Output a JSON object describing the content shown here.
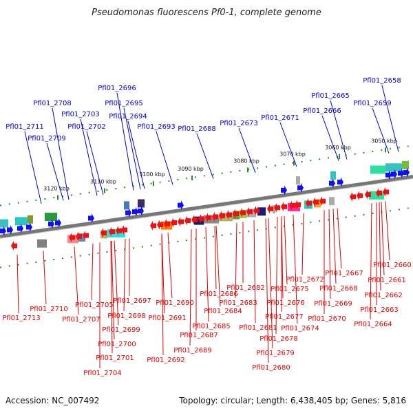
{
  "title": "Pseudomonas fluorescens Pf0-1, complete genome",
  "footer": {
    "accession": "Accession: NC_007492",
    "summary": "Topology: circular; Length: 6,438,405 bp; Genes: 5,816"
  },
  "colors": {
    "top_strand_label": "#0000cc",
    "bottom_strand_label": "#dd0000",
    "top_arrow": "#1010ee",
    "bottom_arrow": "#ee1111",
    "backbone": "#777777",
    "scale_tick": "#2a8a2a"
  },
  "scale_labels": [
    "3050 kbp",
    "3060 kbp",
    "3070 kbp",
    "3080 kbp",
    "3090 kbp",
    "3100 kbp",
    "3110 kbp",
    "3120 kbp"
  ],
  "top_genes": [
    "Pfl01_2658",
    "Pfl01_2659",
    "Pfl01_2665",
    "Pfl01_2666",
    "Pfl01_2671",
    "Pfl01_2673",
    "Pfl01_2688",
    "Pfl01_2693",
    "Pfl01_2694",
    "Pfl01_2695",
    "Pfl01_2696",
    "Pfl01_2702",
    "Pfl01_2703",
    "Pfl01_2708",
    "Pfl01_2709",
    "Pfl01_2711"
  ],
  "bottom_genes": [
    "Pfl01_2660",
    "Pfl01_2661",
    "Pfl01_2662",
    "Pfl01_2663",
    "Pfl01_2664",
    "Pfl01_2667",
    "Pfl01_2668",
    "Pfl01_2669",
    "Pfl01_2670",
    "Pfl01_2672",
    "Pfl01_2674",
    "Pfl01_2675",
    "Pfl01_2676",
    "Pfl01_2677",
    "Pfl01_2678",
    "Pfl01_2679",
    "Pfl01_2680",
    "Pfl01_2681",
    "Pfl01_2682",
    "Pfl01_2683",
    "Pfl01_2684",
    "Pfl01_2685",
    "Pfl01_2686",
    "Pfl01_2687",
    "Pfl01_2689",
    "Pfl01_2690",
    "Pfl01_2691",
    "Pfl01_2692",
    "Pfl01_2697",
    "Pfl01_2698",
    "Pfl01_2699",
    "Pfl01_2700",
    "Pfl01_2701",
    "Pfl01_2704",
    "Pfl01_2705",
    "Pfl01_2707",
    "Pfl01_2710",
    "Pfl01_2713"
  ]
}
